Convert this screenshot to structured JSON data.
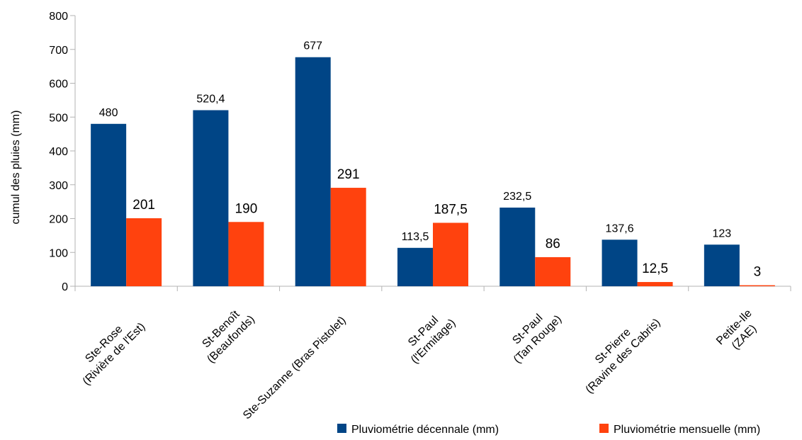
{
  "chart_data": {
    "type": "bar",
    "ylabel": "cumul des pluies (mm)",
    "ylim": [
      0,
      800
    ],
    "yticks": [
      0,
      100,
      200,
      300,
      400,
      500,
      600,
      700,
      800
    ],
    "grid": false,
    "legend_position": "bottom-right",
    "categories": [
      [
        "Ste-Rose",
        "(Rivière de l'Est)"
      ],
      [
        "St-Benoît",
        "(Beaufonds)"
      ],
      [
        "Ste-Suzanne (Bras Pistolet)"
      ],
      [
        "St-Paul",
        "(l'Ermitage)"
      ],
      [
        "St-Paul",
        "(Tan Rouge)"
      ],
      [
        "St-Pierre",
        "(Ravine des Cabris)"
      ],
      [
        "Petite-Ile",
        "(ZAE)"
      ]
    ],
    "series": [
      {
        "name": "Pluviométrie décennale (mm)",
        "color": "#004586",
        "values": [
          480,
          520.4,
          677,
          113.5,
          232.5,
          137.6,
          123
        ],
        "labels": [
          "480",
          "520,4",
          "677",
          "113,5",
          "232,5",
          "137,6",
          "123"
        ]
      },
      {
        "name": "Pluviométrie mensuelle (mm)",
        "color": "#ff420e",
        "values": [
          201,
          190,
          291,
          187.5,
          86,
          12.5,
          3
        ],
        "labels": [
          "201",
          "190",
          "291",
          "187,5",
          "86",
          "12,5",
          "3"
        ]
      }
    ]
  }
}
